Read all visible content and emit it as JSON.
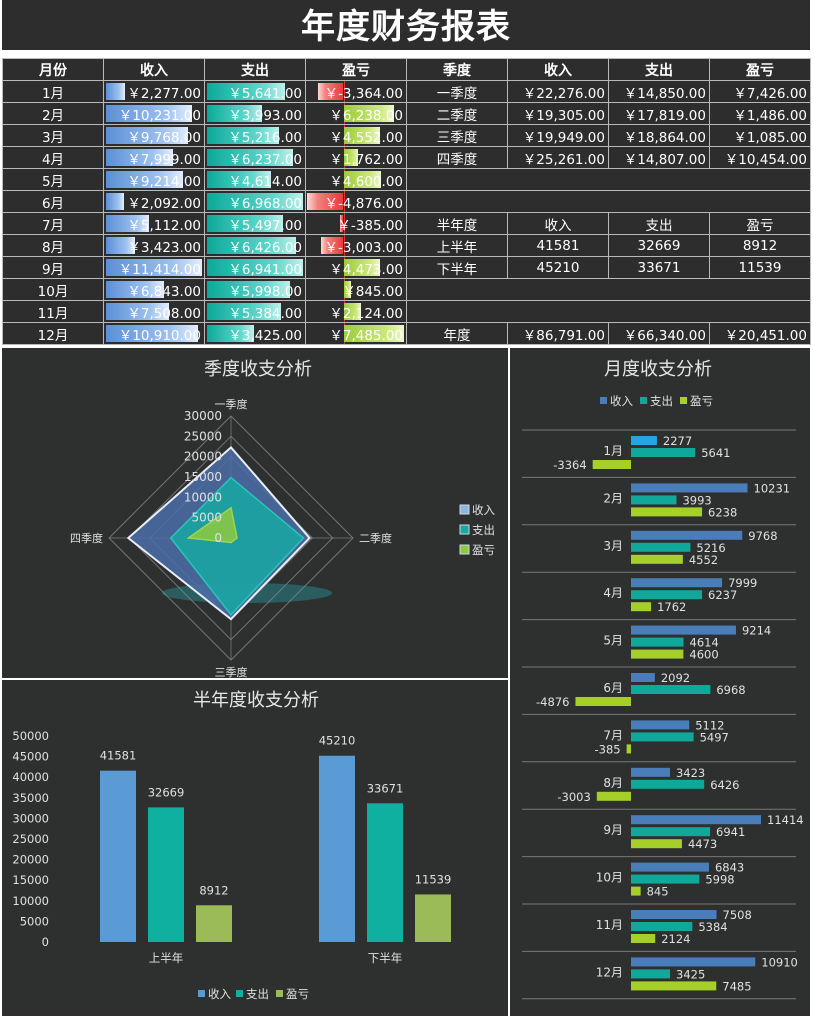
{
  "title": "年度财务报表",
  "monthly": {
    "headers": [
      "月份",
      "收入",
      "支出",
      "盈亏"
    ],
    "rows": [
      {
        "m": "1月",
        "inc": "￥2,277.00",
        "exp": "￥5,641.00",
        "pl": "￥-3,364.00"
      },
      {
        "m": "2月",
        "inc": "￥10,231.00",
        "exp": "￥3,993.00",
        "pl": "￥6,238.00"
      },
      {
        "m": "3月",
        "inc": "￥9,768.00",
        "exp": "￥5,216.00",
        "pl": "￥4,552.00"
      },
      {
        "m": "4月",
        "inc": "￥7,999.00",
        "exp": "￥6,237.00",
        "pl": "￥1,762.00"
      },
      {
        "m": "5月",
        "inc": "￥9,214.00",
        "exp": "￥4,614.00",
        "pl": "￥4,600.00"
      },
      {
        "m": "6月",
        "inc": "￥2,092.00",
        "exp": "￥6,968.00",
        "pl": "￥-4,876.00"
      },
      {
        "m": "7月",
        "inc": "￥5,112.00",
        "exp": "￥5,497.00",
        "pl": "￥-385.00"
      },
      {
        "m": "8月",
        "inc": "￥3,423.00",
        "exp": "￥6,426.00",
        "pl": "￥-3,003.00"
      },
      {
        "m": "9月",
        "inc": "￥11,414.00",
        "exp": "￥6,941.00",
        "pl": "￥4,473.00"
      },
      {
        "m": "10月",
        "inc": "￥6,843.00",
        "exp": "￥5,998.00",
        "pl": "￥845.00"
      },
      {
        "m": "11月",
        "inc": "￥7,508.00",
        "exp": "￥5,384.00",
        "pl": "￥2,124.00"
      },
      {
        "m": "12月",
        "inc": "￥10,910.00",
        "exp": "￥3,425.00",
        "pl": "￥7,485.00"
      }
    ]
  },
  "quarterly": {
    "headers": [
      "季度",
      "收入",
      "支出",
      "盈亏"
    ],
    "rows": [
      {
        "q": "一季度",
        "inc": "￥22,276.00",
        "exp": "￥14,850.00",
        "pl": "￥7,426.00"
      },
      {
        "q": "二季度",
        "inc": "￥19,305.00",
        "exp": "￥17,819.00",
        "pl": "￥1,486.00"
      },
      {
        "q": "三季度",
        "inc": "￥19,949.00",
        "exp": "￥18,864.00",
        "pl": "￥1,085.00"
      },
      {
        "q": "四季度",
        "inc": "￥25,261.00",
        "exp": "￥14,807.00",
        "pl": "￥10,454.00"
      }
    ]
  },
  "halfyear": {
    "headers": [
      "半年度",
      "收入",
      "支出",
      "盈亏"
    ],
    "rows": [
      {
        "h": "上半年",
        "inc": "41581",
        "exp": "32669",
        "pl": "8912"
      },
      {
        "h": "下半年",
        "inc": "45210",
        "exp": "33671",
        "pl": "11539"
      }
    ]
  },
  "annual": {
    "label": "年度",
    "inc": "￥86,791.00",
    "exp": "￥66,340.00",
    "pl": "￥20,451.00"
  },
  "colors": {
    "income": "#4a7ebb",
    "expense": "#0fa89a",
    "profit": "#a6cf2a",
    "background": "#2e3030"
  },
  "chart_data": [
    {
      "type": "radar",
      "title": "季度收支分析",
      "categories": [
        "一季度",
        "二季度",
        "三季度",
        "四季度"
      ],
      "ticks": [
        0,
        5000,
        10000,
        15000,
        20000,
        25000,
        30000
      ],
      "series": [
        {
          "name": "收入",
          "values": [
            22276,
            19305,
            19949,
            25261
          ]
        },
        {
          "name": "支出",
          "values": [
            14850,
            17819,
            18864,
            14807
          ]
        },
        {
          "name": "盈亏",
          "values": [
            7426,
            1486,
            1085,
            10454
          ]
        }
      ],
      "legend": "right"
    },
    {
      "type": "bar",
      "title": "半年度收支分析",
      "categories": [
        "上半年",
        "下半年"
      ],
      "ylim": [
        0,
        50000
      ],
      "ticks": [
        0,
        5000,
        10000,
        15000,
        20000,
        25000,
        30000,
        35000,
        40000,
        45000,
        50000
      ],
      "series": [
        {
          "name": "收入",
          "values": [
            41581,
            45210
          ]
        },
        {
          "name": "支出",
          "values": [
            32669,
            33671
          ]
        },
        {
          "name": "盈亏",
          "values": [
            8912,
            11539
          ]
        }
      ],
      "legend": "bottom"
    },
    {
      "type": "bar",
      "orientation": "horizontal",
      "title": "月度收支分析",
      "categories": [
        "1月",
        "2月",
        "3月",
        "4月",
        "5月",
        "6月",
        "7月",
        "8月",
        "9月",
        "10月",
        "11月",
        "12月"
      ],
      "series": [
        {
          "name": "收入",
          "values": [
            2277,
            10231,
            9768,
            7999,
            9214,
            2092,
            5112,
            3423,
            11414,
            6843,
            7508,
            10910
          ]
        },
        {
          "name": "支出",
          "values": [
            5641,
            3993,
            5216,
            6237,
            4614,
            6968,
            5497,
            6426,
            6941,
            5998,
            5384,
            3425
          ]
        },
        {
          "name": "盈亏",
          "values": [
            -3364,
            6238,
            4552,
            1762,
            4600,
            -4876,
            -385,
            -3003,
            4473,
            845,
            2124,
            7485
          ]
        }
      ],
      "legend": "top"
    }
  ]
}
